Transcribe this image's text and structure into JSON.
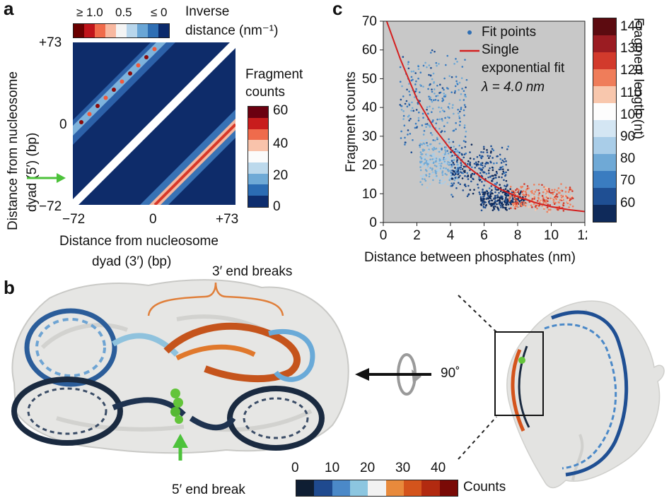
{
  "panel_a": {
    "letter": "a",
    "inverse_scale_ticks": [
      "≥ 1.0",
      "0.5",
      "≤ 0"
    ],
    "inverse_title_line1": "Inverse",
    "inverse_title_line2": "distance (nm⁻¹)",
    "y_label_line1": "Distance from nucleosome",
    "y_label_line2": "dyad (5′) (bp)",
    "y_ticks": [
      "+73",
      "0",
      "−72"
    ],
    "x_ticks": [
      "−72",
      "0",
      "+73"
    ],
    "x_label_line1": "Distance from nucleosome",
    "x_label_line2": "dyad (3′) (bp)",
    "counts_title_line1": "Fragment",
    "counts_title_line2": "counts",
    "counts_ticks": [
      "60",
      "40",
      "20",
      "0"
    ],
    "inverse_colors": [
      "#6b0000",
      "#c0141a",
      "#f06a4a",
      "#f8b8a0",
      "#f4f4f4",
      "#b8d6ec",
      "#6aa6d6",
      "#2f6fb4",
      "#0b2a6b"
    ],
    "counts_colors": [
      "#6b0010",
      "#c81d1d",
      "#ef6b4c",
      "#f9c3ab",
      "#fbfbfb",
      "#bcd9ec",
      "#6faad6",
      "#2b6cb3",
      "#0d2d6e"
    ]
  },
  "panel_c": {
    "letter": "c",
    "legend": {
      "fit_points": "Fit points",
      "fit_line_1": "Single",
      "fit_line_2": "exponential fit",
      "lambda": "λ = 4.0 nm"
    },
    "length_title": "Fragment length (nt)",
    "length_ticks": [
      "140",
      "130",
      "120",
      "110",
      "100",
      "90",
      "80",
      "70",
      "60"
    ],
    "length_colors": [
      "#5c0b10",
      "#9b1c22",
      "#d23a2c",
      "#ef7d5a",
      "#f8c7ad",
      "#fdfdfd",
      "#d4e6f3",
      "#a9cde8",
      "#6fa9d6",
      "#3a7cc0",
      "#1f4f93",
      "#0f2a5a"
    ]
  },
  "chart_data": {
    "type": "scatter",
    "title": "",
    "xlabel": "Distance between phosphates (nm)",
    "ylabel": "Fragment counts",
    "xlim": [
      0,
      12
    ],
    "ylim": [
      0,
      70
    ],
    "x_ticks": [
      0,
      2,
      4,
      6,
      8,
      10,
      12
    ],
    "y_ticks": [
      0,
      10,
      20,
      30,
      40,
      50,
      60,
      70
    ],
    "background": "#c8c8c8",
    "grid": false,
    "legend_position": "top-right",
    "series": [
      {
        "name": "Fit points",
        "kind": "scatter",
        "clusters": [
          {
            "fragment_length_nt": 75,
            "x_range": [
              1.0,
              5.0
            ],
            "y_range": [
              22,
              62
            ]
          },
          {
            "fragment_length_nt": 85,
            "x_range": [
              2.2,
              4.5
            ],
            "y_range": [
              12,
              30
            ]
          },
          {
            "fragment_length_nt": 65,
            "x_range": [
              4.0,
              7.5
            ],
            "y_range": [
              8,
              28
            ]
          },
          {
            "fragment_length_nt": 60,
            "x_range": [
              5.8,
              8.5
            ],
            "y_range": [
              4,
              12
            ]
          },
          {
            "fragment_length_nt": 120,
            "x_range": [
              7.5,
              11.3
            ],
            "y_range": [
              3,
              14
            ]
          }
        ]
      },
      {
        "name": "Single exponential fit",
        "kind": "line",
        "color": "#d42020",
        "x": [
          0.2,
          1,
          2,
          3,
          4,
          5,
          6,
          7,
          8,
          9,
          10,
          11,
          12
        ],
        "y": [
          70,
          57,
          43,
          33,
          25.5,
          19.5,
          15,
          11.5,
          9,
          7,
          5.5,
          4.5,
          3.8
        ]
      }
    ]
  },
  "panel_b": {
    "letter": "b",
    "three_prime_label": "3′ end breaks",
    "five_prime_label": "5′ end break",
    "rotation_label": "90˚",
    "counts_ticks": [
      "0",
      "10",
      "20",
      "30",
      "40"
    ],
    "counts_label": "Counts",
    "counts_colors": [
      "#0f1e33",
      "#1f4a8f",
      "#4b89c8",
      "#8cc6e0",
      "#f2f2f2",
      "#e88a3c",
      "#d4541c",
      "#b22a10",
      "#7a0a06"
    ]
  }
}
